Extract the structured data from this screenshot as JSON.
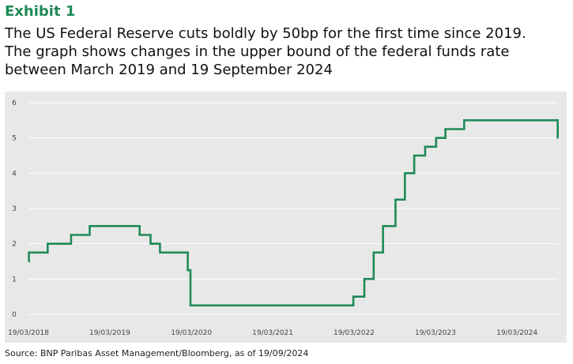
{
  "header": {
    "exhibit": "Exhibit 1",
    "title_lines": [
      "The US Federal Reserve cuts boldly by 50bp for the first time since 2019.",
      "The graph shows changes in the upper bound of the federal funds rate",
      "between March 2019 and 19 September 2024"
    ]
  },
  "source": "Source: BNP Paribas Asset Management/Bloomberg, as of 19/09/2024",
  "colors": {
    "line": "#1f8a57",
    "plot_bg": "#e8e8e8",
    "grid": "#ffffff",
    "accent": "#1f8a57"
  },
  "chart_data": {
    "type": "line",
    "xlim": [
      "2018-03-19",
      "2024-09-19"
    ],
    "ylim": [
      0,
      6
    ],
    "yticks": [
      0,
      1,
      2,
      3,
      4,
      5,
      6
    ],
    "xtick_labels": [
      "19/03/2018",
      "19/03/2019",
      "19/03/2020",
      "19/03/2021",
      "19/03/2022",
      "19/03/2023",
      "19/03/2024"
    ],
    "xtick_dates": [
      "2018-03-19",
      "2019-03-19",
      "2020-03-19",
      "2021-03-19",
      "2022-03-19",
      "2023-03-19",
      "2024-03-19"
    ],
    "grid": true,
    "legend": "none",
    "series": [
      {
        "values": [
          [
            "2018-03-19",
            1.5
          ],
          [
            "2018-03-21",
            1.75
          ],
          [
            "2018-06-13",
            2.0
          ],
          [
            "2018-09-26",
            2.25
          ],
          [
            "2018-12-19",
            2.5
          ],
          [
            "2019-07-31",
            2.25
          ],
          [
            "2019-09-18",
            2.0
          ],
          [
            "2019-10-30",
            1.75
          ],
          [
            "2020-03-03",
            1.25
          ],
          [
            "2020-03-15",
            0.25
          ],
          [
            "2022-03-16",
            0.5
          ],
          [
            "2022-05-04",
            1.0
          ],
          [
            "2022-06-15",
            1.75
          ],
          [
            "2022-07-27",
            2.5
          ],
          [
            "2022-09-21",
            3.25
          ],
          [
            "2022-11-02",
            4.0
          ],
          [
            "2022-12-14",
            4.5
          ],
          [
            "2023-02-01",
            4.75
          ],
          [
            "2023-03-22",
            5.0
          ],
          [
            "2023-05-03",
            5.25
          ],
          [
            "2023-07-26",
            5.5
          ],
          [
            "2024-09-18",
            5.0
          ],
          [
            "2024-09-19",
            5.0
          ]
        ]
      }
    ]
  }
}
